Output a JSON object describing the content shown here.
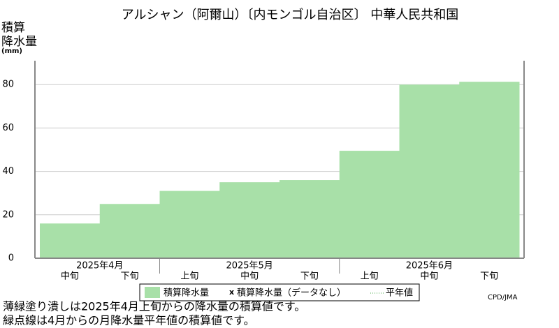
{
  "chart_data": {
    "type": "step-area",
    "title": "アルシャン（阿爾山）〔内モンゴル自治区〕 中華人民共和国",
    "y_label": [
      "積算",
      "降水量",
      "(mm)"
    ],
    "categories": [
      "中旬",
      "下旬",
      "上旬",
      "中旬",
      "下旬",
      "上旬",
      "中旬",
      "下旬"
    ],
    "months": [
      {
        "label": "2025年4月",
        "count": 2
      },
      {
        "label": "2025年5月",
        "count": 3
      },
      {
        "label": "2025年6月",
        "count": 3
      }
    ],
    "series": [
      {
        "name": "積算降水量",
        "color": "#a8e0a8",
        "values": [
          16,
          25,
          31,
          35,
          36,
          49.5,
          80,
          81.3
        ]
      }
    ],
    "legend": [
      "積算降水量（データなし）",
      "平年値"
    ],
    "ylim": [
      0,
      91
    ],
    "yticks": [
      0,
      20,
      40,
      60,
      80
    ],
    "grid": true,
    "credit": "CPD/JMA",
    "notes": [
      "薄緑塗り潰しは2025年4月上旬からの降水量の積算値です。",
      "緑点線は4月からの月降水量平年値の積算値です。"
    ]
  }
}
